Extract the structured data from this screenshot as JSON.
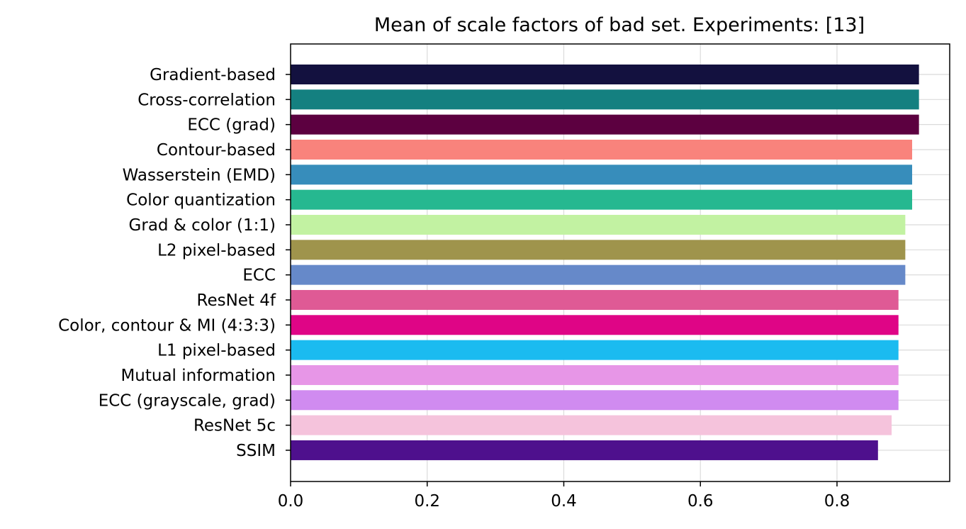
{
  "chart_data": {
    "type": "bar",
    "orientation": "horizontal",
    "title": "Mean of scale factors of bad set. Experiments: [13]",
    "xlabel": "",
    "ylabel": "",
    "xlim": [
      0,
      0.965
    ],
    "xticks": [
      0.0,
      0.2,
      0.4,
      0.6,
      0.8
    ],
    "xtick_labels": [
      "0.0",
      "0.2",
      "0.4",
      "0.6",
      "0.8"
    ],
    "grid": true,
    "legend": "none",
    "categories": [
      "Gradient-based",
      "Cross-correlation",
      "ECC (grad)",
      "Contour-based",
      "Wasserstein (EMD)",
      "Color quantization",
      "Grad & color (1:1)",
      "L2 pixel-based",
      "ECC",
      "ResNet 4f",
      "Color, contour & MI (4:3:3)",
      "L1 pixel-based",
      "Mutual information",
      "ECC (grayscale, grad)",
      "ResNet 5c",
      "SSIM"
    ],
    "values": [
      0.92,
      0.92,
      0.92,
      0.91,
      0.91,
      0.91,
      0.9,
      0.9,
      0.9,
      0.89,
      0.89,
      0.89,
      0.89,
      0.89,
      0.88,
      0.86
    ],
    "colors": [
      "#13113f",
      "#148080",
      "#5c0040",
      "#f9837c",
      "#378dbb",
      "#26b890",
      "#c2f2a2",
      "#9f944c",
      "#6689c9",
      "#df5a95",
      "#df0586",
      "#1bbbf0",
      "#e796e7",
      "#d08bf0",
      "#f5c3dc",
      "#4e108d"
    ]
  }
}
